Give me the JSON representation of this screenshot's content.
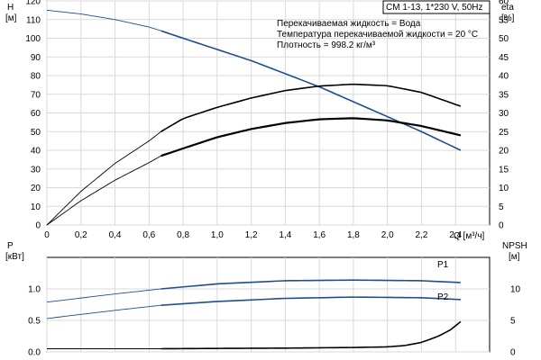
{
  "chart_data": [
    {
      "type": "line",
      "title": "CM 1-13, 1*230 V, 50Hz",
      "annotations": [
        "Перекачиваемая жидкость = Вода",
        "Температура перекачиваемой жидкости = 20 °C",
        "Плотность = 998.2 кг/м³"
      ],
      "xlabel": "Q [м³/ч]",
      "x_ticks": [
        "0",
        "0,2",
        "0,4",
        "0,6",
        "0,8",
        "1,0",
        "1,2",
        "1,4",
        "1,6",
        "1,8",
        "2,0",
        "2,2",
        "2,4"
      ],
      "xlim": [
        0,
        2.6
      ],
      "y_left": {
        "label_line1": "H",
        "label_line2": "[м]",
        "lim": [
          0,
          120
        ],
        "ticks": [
          "0",
          "10",
          "20",
          "30",
          "40",
          "50",
          "60",
          "70",
          "80",
          "90",
          "100",
          "110",
          "120"
        ]
      },
      "y_right": {
        "label_line1": "eta",
        "label_line2": "[%]",
        "lim": [
          0,
          60
        ],
        "ticks": [
          "0",
          "5",
          "10",
          "15",
          "20",
          "25",
          "30",
          "35",
          "40",
          "45",
          "50",
          "55",
          "60"
        ]
      },
      "grid": true,
      "series": [
        {
          "axis": "left",
          "color": "#1f4e8c",
          "x": [
            0,
            0.2,
            0.4,
            0.6,
            0.67,
            0.8,
            1.0,
            1.2,
            1.4,
            1.6,
            1.8,
            2.0,
            2.2,
            2.43
          ],
          "values": [
            115,
            113,
            110,
            106,
            104,
            100,
            94,
            88,
            81,
            74,
            66,
            58,
            50,
            40
          ],
          "operating_range": [
            0.67,
            2.43
          ]
        },
        {
          "axis": "right",
          "color": "#000000",
          "x": [
            0,
            0.2,
            0.4,
            0.6,
            0.67,
            0.8,
            1.0,
            1.2,
            1.4,
            1.6,
            1.8,
            2.0,
            2.2,
            2.43
          ],
          "values": [
            0,
            9,
            16.5,
            22.5,
            25,
            28.5,
            31.5,
            34,
            36,
            37.2,
            37.7,
            37.3,
            35.5,
            31.8
          ],
          "operating_range": [
            0.67,
            2.43
          ]
        },
        {
          "axis": "right",
          "color": "#000000",
          "x": [
            0,
            0.2,
            0.4,
            0.6,
            0.67,
            0.8,
            1.0,
            1.2,
            1.4,
            1.6,
            1.8,
            2.0,
            2.2,
            2.43
          ],
          "values": [
            0,
            6.5,
            12,
            16.7,
            18.5,
            20.5,
            23.5,
            25.7,
            27.3,
            28.3,
            28.6,
            28,
            26.5,
            24
          ],
          "operating_range": [
            0.67,
            2.43
          ]
        }
      ]
    },
    {
      "type": "line",
      "xlim": [
        0,
        2.6
      ],
      "y_left": {
        "label_line1": "P",
        "label_line2": "[кВт]",
        "lim": [
          0,
          1.5
        ],
        "ticks": [
          "0.0",
          "0.5",
          "1.0"
        ],
        "tick_values": [
          0,
          0.5,
          1.0
        ]
      },
      "y_right": {
        "label_line1": "NPSH",
        "label_line2": "[м]",
        "lim": [
          0,
          15
        ],
        "ticks": [
          "0",
          "5",
          "10"
        ],
        "tick_values": [
          0,
          5,
          10
        ]
      },
      "grid": true,
      "series": [
        {
          "name": "P1",
          "axis": "left",
          "color": "#1f4e8c",
          "x": [
            0,
            0.4,
            0.67,
            1.0,
            1.4,
            1.8,
            2.2,
            2.43
          ],
          "values": [
            0.79,
            0.92,
            1.0,
            1.08,
            1.13,
            1.14,
            1.13,
            1.1
          ],
          "operating_range": [
            0.67,
            2.43
          ]
        },
        {
          "name": "P2",
          "axis": "left",
          "color": "#1f4e8c",
          "x": [
            0,
            0.4,
            0.67,
            1.0,
            1.4,
            1.8,
            2.2,
            2.43
          ],
          "values": [
            0.53,
            0.66,
            0.74,
            0.8,
            0.85,
            0.87,
            0.86,
            0.83
          ],
          "operating_range": [
            0.67,
            2.43
          ]
        },
        {
          "axis": "right",
          "color": "#000000",
          "x": [
            0,
            0.67,
            1.0,
            1.4,
            1.8,
            2.0,
            2.1,
            2.2,
            2.3,
            2.37,
            2.43
          ],
          "values": [
            0.5,
            0.5,
            0.55,
            0.6,
            0.7,
            0.8,
            1.0,
            1.5,
            2.5,
            3.5,
            4.8
          ],
          "operating_range": [
            0.67,
            2.43
          ]
        }
      ]
    }
  ]
}
